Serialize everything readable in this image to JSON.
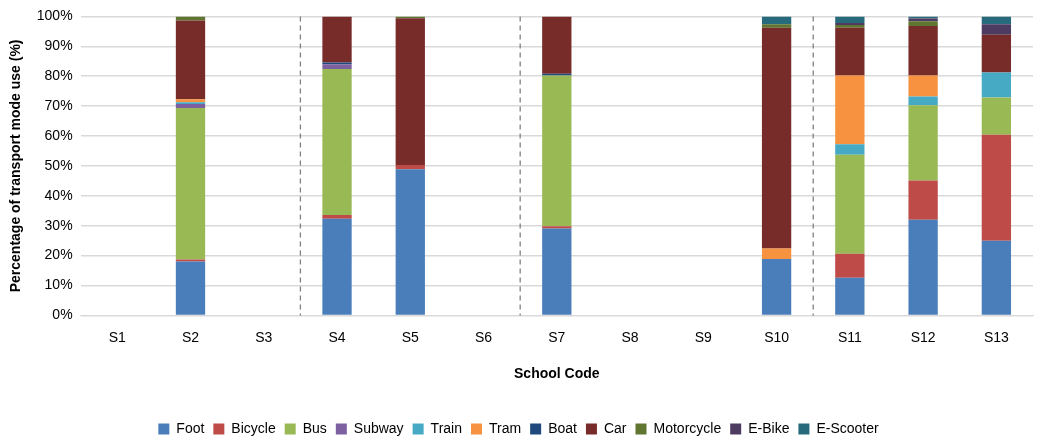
{
  "chart_data": {
    "type": "bar",
    "stacked": true,
    "xlabel": "School Code",
    "ylabel": "Percentage of transport mode use (%)",
    "categories": [
      "S1",
      "S2",
      "S3",
      "S4",
      "S5",
      "S6",
      "S7",
      "S8",
      "S9",
      "S10",
      "S11",
      "S12",
      "S13"
    ],
    "ylim": [
      0,
      100
    ],
    "yticks": [
      {
        "value": 0,
        "label": "0%"
      },
      {
        "value": 10,
        "label": "10%"
      },
      {
        "value": 20,
        "label": "20%"
      },
      {
        "value": 30,
        "label": "30%"
      },
      {
        "value": 40,
        "label": "40%"
      },
      {
        "value": 50,
        "label": "50%"
      },
      {
        "value": 60,
        "label": "60%"
      },
      {
        "value": 70,
        "label": "70%"
      },
      {
        "value": 80,
        "label": "80%"
      },
      {
        "value": 90,
        "label": "90%"
      },
      {
        "value": 100,
        "label": "100%"
      }
    ],
    "grid": "y",
    "legend": "bottom",
    "series": [
      {
        "name": "Foot",
        "color": "#4a7ebb",
        "values": [
          null,
          18,
          null,
          32.3,
          48.9,
          null,
          29.1,
          null,
          null,
          18.9,
          12.6,
          32,
          25
        ]
      },
      {
        "name": "Bicycle",
        "color": "#be4b48",
        "values": [
          null,
          0.7,
          null,
          1.3,
          1.4,
          null,
          0.7,
          null,
          null,
          null,
          8,
          13.1,
          35.4
        ]
      },
      {
        "name": "Bus",
        "color": "#98b954",
        "values": [
          null,
          50.7,
          null,
          48.8,
          null,
          null,
          50.4,
          null,
          null,
          null,
          33.1,
          25.2,
          12.5
        ]
      },
      {
        "name": "Subway",
        "color": "#7d60a0",
        "values": [
          null,
          1.3,
          null,
          1.6,
          null,
          null,
          null,
          null,
          null,
          null,
          null,
          null,
          null
        ]
      },
      {
        "name": "Train",
        "color": "#46aac5",
        "values": [
          null,
          0.6,
          null,
          null,
          null,
          null,
          null,
          null,
          null,
          null,
          3.5,
          2.9,
          8.3
        ]
      },
      {
        "name": "Tram",
        "color": "#f69240",
        "values": [
          null,
          1,
          null,
          null,
          null,
          null,
          null,
          null,
          null,
          3.5,
          23,
          7,
          null
        ]
      },
      {
        "name": "Boat",
        "color": "#1f497d",
        "values": [
          null,
          null,
          null,
          0.6,
          null,
          null,
          0.6,
          null,
          null,
          null,
          null,
          null,
          null
        ]
      },
      {
        "name": "Car",
        "color": "#772c2a",
        "values": [
          null,
          26.3,
          null,
          15.4,
          49.1,
          null,
          19.2,
          null,
          null,
          73.8,
          16,
          16.6,
          12.7
        ]
      },
      {
        "name": "Motorcycle",
        "color": "#5f7530",
        "values": [
          null,
          1.4,
          null,
          null,
          0.6,
          null,
          null,
          null,
          null,
          1.2,
          0.9,
          1.6,
          null
        ]
      },
      {
        "name": "E-Bike",
        "color": "#4d3b62",
        "values": [
          null,
          null,
          null,
          null,
          null,
          null,
          null,
          null,
          null,
          null,
          0.7,
          0.9,
          3.5
        ]
      },
      {
        "name": "E-Scooter",
        "color": "#276a7c",
        "values": [
          null,
          null,
          null,
          null,
          null,
          null,
          null,
          null,
          null,
          2.6,
          2.2,
          0.7,
          2.6
        ]
      }
    ]
  }
}
